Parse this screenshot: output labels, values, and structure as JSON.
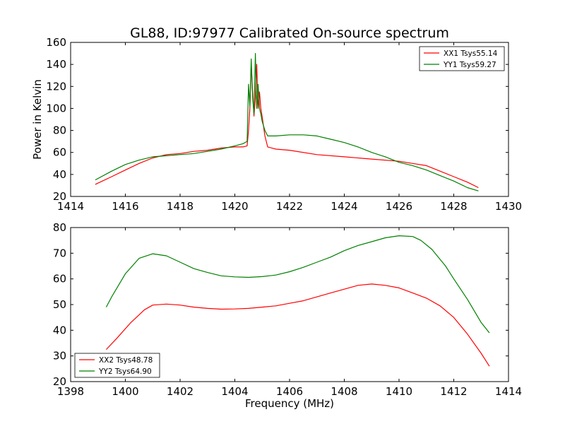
{
  "figure": {
    "title": "GL88, ID:97977 Calibrated On-source spectrum",
    "ylabel": "Power in Kelvin",
    "xlabel": "Frequency (MHz)"
  },
  "chart_data": [
    {
      "type": "line",
      "xlim": [
        1414,
        1430
      ],
      "ylim": [
        20,
        160
      ],
      "xticks": [
        1414,
        1416,
        1418,
        1420,
        1422,
        1424,
        1426,
        1428,
        1430
      ],
      "yticks": [
        20,
        40,
        60,
        80,
        100,
        120,
        140,
        160
      ],
      "legend_position": "top-right",
      "series": [
        {
          "name": "XX1 Tsys55.14",
          "color": "#ff0000",
          "x": [
            1414.9,
            1415.5,
            1416,
            1416.5,
            1417,
            1417.5,
            1418,
            1418.5,
            1419,
            1419.5,
            1420,
            1420.3,
            1420.45,
            1420.5,
            1420.55,
            1420.6,
            1420.65,
            1420.7,
            1420.75,
            1420.8,
            1420.85,
            1420.9,
            1420.95,
            1421,
            1421.1,
            1421.2,
            1421.5,
            1422,
            1423,
            1424,
            1425,
            1426,
            1426.5,
            1427,
            1427.5,
            1428,
            1428.5,
            1428.9
          ],
          "y": [
            31,
            38,
            44,
            50,
            55,
            58,
            59,
            61,
            62,
            64,
            65,
            65,
            66,
            80,
            100,
            140,
            115,
            93,
            110,
            140,
            100,
            115,
            100,
            92,
            75,
            65,
            63,
            62,
            58,
            56,
            54,
            52,
            50,
            48,
            43,
            38,
            33,
            28
          ]
        },
        {
          "name": "YY1 Tsys59.27",
          "color": "#008000",
          "x": [
            1414.9,
            1415.5,
            1416,
            1416.5,
            1417,
            1417.5,
            1418,
            1418.5,
            1419,
            1419.5,
            1420,
            1420.3,
            1420.45,
            1420.5,
            1420.55,
            1420.6,
            1420.65,
            1420.7,
            1420.75,
            1420.8,
            1420.85,
            1420.9,
            1420.95,
            1421,
            1421.1,
            1421.2,
            1421.5,
            1422,
            1422.5,
            1423,
            1423.5,
            1424,
            1424.5,
            1425,
            1425.5,
            1426,
            1426.5,
            1427,
            1427.5,
            1428,
            1428.5,
            1428.9
          ],
          "y": [
            35,
            43,
            49,
            53,
            56,
            57,
            58,
            59,
            61,
            63,
            66,
            68,
            70,
            122,
            102,
            145,
            110,
            95,
            150,
            100,
            122,
            100,
            95,
            88,
            80,
            75,
            75,
            76,
            76,
            75,
            72,
            69,
            65,
            60,
            56,
            51,
            48,
            44,
            39,
            34,
            28,
            25
          ]
        }
      ]
    },
    {
      "type": "line",
      "xlim": [
        1398,
        1414
      ],
      "ylim": [
        20,
        80
      ],
      "xticks": [
        1398,
        1400,
        1402,
        1404,
        1406,
        1408,
        1410,
        1412,
        1414
      ],
      "yticks": [
        20,
        30,
        40,
        50,
        60,
        70,
        80
      ],
      "legend_position": "bottom-left",
      "series": [
        {
          "name": "XX2 Tsys48.78",
          "color": "#ff0000",
          "x": [
            1399.3,
            1399.7,
            1400.2,
            1400.7,
            1401,
            1401.5,
            1402,
            1402.5,
            1403,
            1403.5,
            1404,
            1404.5,
            1405,
            1405.5,
            1406,
            1406.5,
            1407,
            1407.5,
            1408,
            1408.5,
            1409,
            1409.5,
            1410,
            1410.5,
            1411,
            1411.5,
            1412,
            1412.5,
            1413,
            1413.3
          ],
          "y": [
            32.5,
            37,
            43,
            48,
            49.8,
            50.2,
            49.8,
            49,
            48.5,
            48.2,
            48.3,
            48.5,
            49,
            49.5,
            50.5,
            51.5,
            53,
            54.5,
            56,
            57.5,
            58,
            57.5,
            56.5,
            54.5,
            52.5,
            49.5,
            45,
            38.5,
            31,
            26
          ]
        },
        {
          "name": "YY2 Tsys64.90",
          "color": "#008000",
          "x": [
            1399.3,
            1399.5,
            1400,
            1400.5,
            1401,
            1401.5,
            1402,
            1402.5,
            1403,
            1403.5,
            1404,
            1404.5,
            1405,
            1405.5,
            1406,
            1406.5,
            1407,
            1407.5,
            1408,
            1408.5,
            1409,
            1409.5,
            1410,
            1410.5,
            1410.8,
            1411.2,
            1411.7,
            1412,
            1412.5,
            1413,
            1413.3
          ],
          "y": [
            49,
            53,
            62,
            68,
            69.8,
            69,
            66.5,
            64,
            62.5,
            61.2,
            60.8,
            60.6,
            60.9,
            61.5,
            62.8,
            64.5,
            66.5,
            68.5,
            71,
            73,
            74.5,
            76,
            76.8,
            76.5,
            75,
            71.5,
            65,
            60,
            52,
            43,
            39
          ]
        }
      ]
    }
  ]
}
